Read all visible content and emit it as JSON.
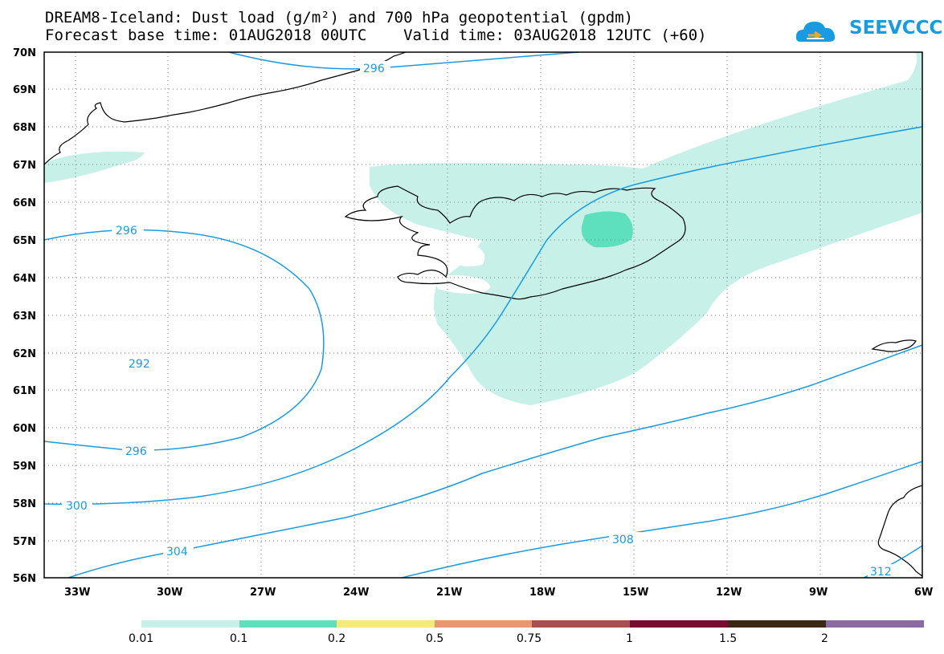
{
  "title": {
    "line1": "DREAM8-Iceland: Dust load (g/m²) and 700 hPa geopotential (gpdm)",
    "line2": "Forecast base time: 01AUG2018 00UTC    Valid time: 03AUG2018 12UTC (+60)"
  },
  "logo": {
    "text": "SEEVCCC",
    "icon": "cloud-icon"
  },
  "map": {
    "lat_labels": [
      "70N",
      "69N",
      "68N",
      "67N",
      "66N",
      "65N",
      "64N",
      "63N",
      "62N",
      "61N",
      "60N",
      "59N",
      "58N",
      "57N",
      "56N"
    ],
    "lon_labels": [
      "33W",
      "30W",
      "27W",
      "24W",
      "21W",
      "18W",
      "15W",
      "12W",
      "9W",
      "6W"
    ],
    "contour_labels": [
      "296",
      "296",
      "292",
      "296",
      "300",
      "304",
      "308",
      "312"
    ],
    "contour_color": "#1a9be0",
    "dust_colors": {
      "low": "#c6f0e8",
      "mid": "#5de0bb"
    }
  },
  "legend": {
    "ticks": [
      "0.01",
      "0.1",
      "0.2",
      "0.5",
      "0.75",
      "1",
      "1.5",
      "2"
    ],
    "colors": [
      "#c6f0e8",
      "#5de0bb",
      "#f7e97a",
      "#e89870",
      "#a85050",
      "#7a0b30",
      "#3b2814",
      "#8a6aa0"
    ]
  }
}
